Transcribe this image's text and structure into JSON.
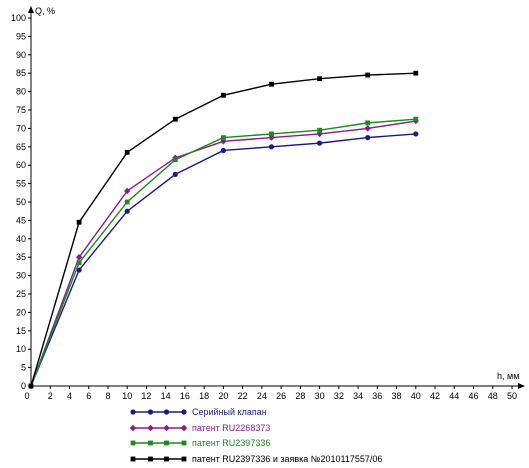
{
  "chart_data": {
    "type": "line",
    "ylabel": "Q, %",
    "xlabel": "h, мм",
    "xlim": [
      0,
      50
    ],
    "ylim": [
      0,
      100
    ],
    "x_ticks": [
      0,
      2,
      4,
      6,
      8,
      10,
      12,
      14,
      16,
      18,
      20,
      22,
      24,
      26,
      28,
      30,
      32,
      34,
      36,
      38,
      40,
      42,
      44,
      46,
      48,
      50
    ],
    "y_ticks": [
      0,
      5,
      10,
      15,
      20,
      25,
      30,
      35,
      40,
      45,
      50,
      55,
      60,
      65,
      70,
      75,
      80,
      85,
      90,
      95,
      100
    ],
    "grid": false,
    "legend_position": "bottom",
    "series": [
      {
        "name": "Серийный клапан",
        "color": "#1a1a8c",
        "marker": "circle",
        "x": [
          0,
          5,
          10,
          15,
          20,
          25,
          30,
          35,
          40
        ],
        "y": [
          0,
          31.5,
          47.5,
          57.5,
          64,
          65,
          66,
          67.5,
          68.5
        ]
      },
      {
        "name": "патент RU2268373",
        "color": "#8c1a8c",
        "marker": "diamond",
        "x": [
          0,
          5,
          10,
          15,
          20,
          25,
          30,
          35,
          40
        ],
        "y": [
          0,
          35,
          53,
          62,
          66.5,
          67.5,
          68.5,
          70,
          72
        ]
      },
      {
        "name": "патент RU2397336",
        "color": "#1a8c1a",
        "marker": "square",
        "x": [
          0,
          5,
          10,
          15,
          20,
          25,
          30,
          35,
          40
        ],
        "y": [
          0,
          33.5,
          50,
          61.5,
          67.5,
          68.5,
          69.5,
          71.5,
          72.5
        ]
      },
      {
        "name": "патент RU2397336  и заявка №2010117557/06",
        "color": "#000000",
        "marker": "square",
        "x": [
          0,
          5,
          10,
          15,
          20,
          25,
          30,
          35,
          40
        ],
        "y": [
          0,
          44.5,
          63.5,
          72.5,
          79,
          82,
          83.5,
          84.5,
          85
        ]
      }
    ]
  }
}
